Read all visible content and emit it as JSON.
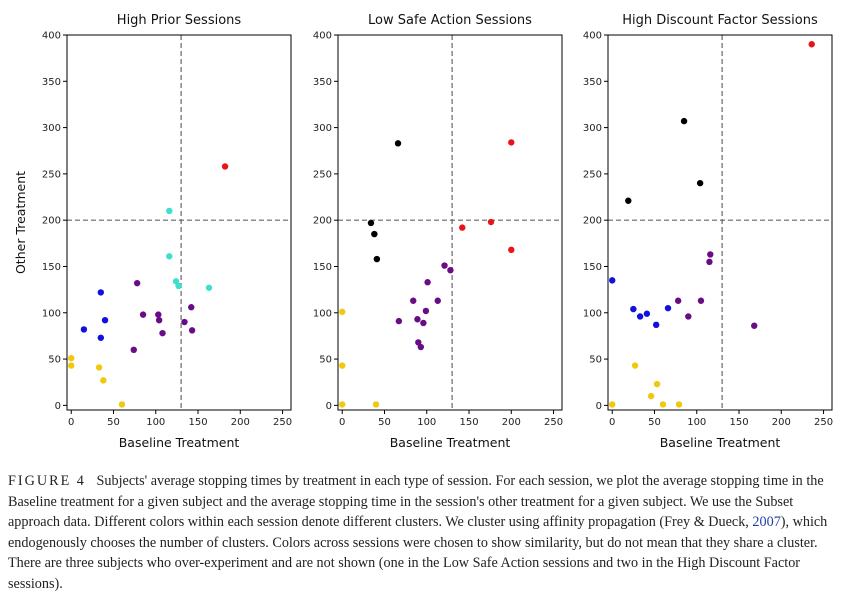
{
  "chart_data": [
    {
      "type": "scatter",
      "title": "High Prior Sessions",
      "xlabel": "Baseline Treatment",
      "ylabel": "Other Treatment",
      "xlim": [
        -5,
        260
      ],
      "ylim": [
        -5,
        400
      ],
      "xticks": [
        0,
        50,
        100,
        150,
        200,
        250
      ],
      "yticks": [
        0,
        50,
        100,
        150,
        200,
        250,
        300,
        350,
        400
      ],
      "vline": 130,
      "hline": 200,
      "points": [
        {
          "x": 0,
          "y": 51,
          "c": "yellow"
        },
        {
          "x": 0,
          "y": 43,
          "c": "yellow"
        },
        {
          "x": 33,
          "y": 41,
          "c": "yellow"
        },
        {
          "x": 38,
          "y": 27,
          "c": "yellow"
        },
        {
          "x": 60,
          "y": 1,
          "c": "yellow"
        },
        {
          "x": 15,
          "y": 82,
          "c": "blue"
        },
        {
          "x": 35,
          "y": 122,
          "c": "blue"
        },
        {
          "x": 40,
          "y": 92,
          "c": "blue"
        },
        {
          "x": 35,
          "y": 73,
          "c": "blue"
        },
        {
          "x": 78,
          "y": 132,
          "c": "purple"
        },
        {
          "x": 85,
          "y": 98,
          "c": "purple"
        },
        {
          "x": 74,
          "y": 60,
          "c": "purple"
        },
        {
          "x": 103,
          "y": 98,
          "c": "purple"
        },
        {
          "x": 104,
          "y": 92,
          "c": "purple"
        },
        {
          "x": 108,
          "y": 78,
          "c": "purple"
        },
        {
          "x": 134,
          "y": 90,
          "c": "purple"
        },
        {
          "x": 142,
          "y": 106,
          "c": "purple"
        },
        {
          "x": 143,
          "y": 81,
          "c": "purple"
        },
        {
          "x": 116,
          "y": 210,
          "c": "cyan"
        },
        {
          "x": 116,
          "y": 161,
          "c": "cyan"
        },
        {
          "x": 124,
          "y": 134,
          "c": "cyan"
        },
        {
          "x": 127,
          "y": 129,
          "c": "cyan"
        },
        {
          "x": 163,
          "y": 127,
          "c": "cyan"
        },
        {
          "x": 182,
          "y": 258,
          "c": "red"
        }
      ]
    },
    {
      "type": "scatter",
      "title": "Low Safe Action Sessions",
      "xlabel": "Baseline Treatment",
      "ylabel": "",
      "xlim": [
        -5,
        260
      ],
      "ylim": [
        -5,
        400
      ],
      "xticks": [
        0,
        50,
        100,
        150,
        200,
        250
      ],
      "yticks": [
        0,
        50,
        100,
        150,
        200,
        250,
        300,
        350,
        400
      ],
      "vline": 130,
      "hline": 200,
      "points": [
        {
          "x": 0,
          "y": 101,
          "c": "yellow"
        },
        {
          "x": 0,
          "y": 43,
          "c": "yellow"
        },
        {
          "x": 0,
          "y": 1,
          "c": "yellow"
        },
        {
          "x": 40,
          "y": 1,
          "c": "yellow"
        },
        {
          "x": 66,
          "y": 283,
          "c": "black"
        },
        {
          "x": 34,
          "y": 197,
          "c": "black"
        },
        {
          "x": 38,
          "y": 185,
          "c": "black"
        },
        {
          "x": 41,
          "y": 158,
          "c": "black"
        },
        {
          "x": 67,
          "y": 91,
          "c": "purple"
        },
        {
          "x": 84,
          "y": 113,
          "c": "purple"
        },
        {
          "x": 89,
          "y": 93,
          "c": "purple"
        },
        {
          "x": 90,
          "y": 68,
          "c": "purple"
        },
        {
          "x": 93,
          "y": 63,
          "c": "purple"
        },
        {
          "x": 96,
          "y": 89,
          "c": "purple"
        },
        {
          "x": 99,
          "y": 102,
          "c": "purple"
        },
        {
          "x": 101,
          "y": 133,
          "c": "purple"
        },
        {
          "x": 113,
          "y": 113,
          "c": "purple"
        },
        {
          "x": 121,
          "y": 151,
          "c": "purple"
        },
        {
          "x": 128,
          "y": 146,
          "c": "purple"
        },
        {
          "x": 142,
          "y": 192,
          "c": "red"
        },
        {
          "x": 176,
          "y": 198,
          "c": "red"
        },
        {
          "x": 200,
          "y": 284,
          "c": "red"
        },
        {
          "x": 200,
          "y": 168,
          "c": "red"
        }
      ]
    },
    {
      "type": "scatter",
      "title": "High Discount Factor Sessions",
      "xlabel": "Baseline Treatment",
      "ylabel": "",
      "xlim": [
        -5,
        260
      ],
      "ylim": [
        -5,
        400
      ],
      "xticks": [
        0,
        50,
        100,
        150,
        200,
        250
      ],
      "yticks": [
        0,
        50,
        100,
        150,
        200,
        250,
        300,
        350,
        400
      ],
      "vline": 130,
      "hline": 200,
      "points": [
        {
          "x": 0,
          "y": 1,
          "c": "yellow"
        },
        {
          "x": 27,
          "y": 43,
          "c": "yellow"
        },
        {
          "x": 46,
          "y": 10,
          "c": "yellow"
        },
        {
          "x": 53,
          "y": 23,
          "c": "yellow"
        },
        {
          "x": 60,
          "y": 1,
          "c": "yellow"
        },
        {
          "x": 79,
          "y": 1,
          "c": "yellow"
        },
        {
          "x": 0,
          "y": 135,
          "c": "blue"
        },
        {
          "x": 25,
          "y": 104,
          "c": "blue"
        },
        {
          "x": 33,
          "y": 96,
          "c": "blue"
        },
        {
          "x": 41,
          "y": 99,
          "c": "blue"
        },
        {
          "x": 52,
          "y": 87,
          "c": "blue"
        },
        {
          "x": 66,
          "y": 105,
          "c": "blue"
        },
        {
          "x": 19,
          "y": 221,
          "c": "black"
        },
        {
          "x": 85,
          "y": 307,
          "c": "black"
        },
        {
          "x": 104,
          "y": 240,
          "c": "black"
        },
        {
          "x": 78,
          "y": 113,
          "c": "purple"
        },
        {
          "x": 90,
          "y": 96,
          "c": "purple"
        },
        {
          "x": 105,
          "y": 113,
          "c": "purple"
        },
        {
          "x": 115,
          "y": 155,
          "c": "purple"
        },
        {
          "x": 116,
          "y": 163,
          "c": "purple"
        },
        {
          "x": 168,
          "y": 86,
          "c": "purple"
        },
        {
          "x": 236,
          "y": 390,
          "c": "red"
        }
      ]
    }
  ],
  "colors": {
    "yellow": "#f2c80f",
    "blue": "#1010e0",
    "purple": "#6a0c86",
    "cyan": "#3fdfcf",
    "red": "#e8141a",
    "black": "#000000",
    "refline": "#666666"
  },
  "caption": {
    "label": "FIGURE 4",
    "text_before_link": "Subjects' average stopping times by treatment in each type of session. For each session, we plot the average stopping time in the Baseline treatment for a given subject and the average stopping time in the session's other treatment for a given subject. We use the Subset approach data. Different colors within each session denote different clusters. We cluster using affinity propagation (Frey & Dueck, ",
    "link_text": "2007",
    "text_after_link": "), which endogenously chooses the number of clusters. Colors across sessions were chosen to show similarity, but do not mean that they share a cluster. There are three subjects who over-experiment and are not shown (one in the Low Safe Action sessions and two in the High Discount Factor sessions)."
  }
}
